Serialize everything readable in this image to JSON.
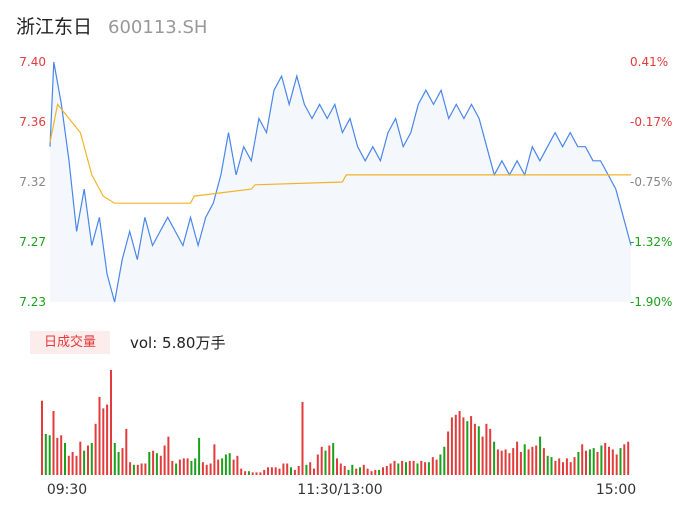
{
  "header": {
    "stock_name": "浙江东日",
    "stock_code": "600113.SH"
  },
  "volume_panel": {
    "tag_label": "日成交量",
    "readout": "vol: 5.80万手"
  },
  "colors": {
    "up": "#e33b3b",
    "down": "#1aa01a",
    "neutral": "#888888",
    "price_line": "#4a86e8",
    "avg_line": "#f0b429",
    "price_fill": "#f4f8fd"
  },
  "chart_data": [
    {
      "type": "line",
      "subtype": "intraday-timeshare",
      "x_ticks": [
        "09:30",
        "11:30/13:00",
        "15:00"
      ],
      "y_ticks_price": [
        "7.40",
        "7.36",
        "7.32",
        "7.27",
        "7.23"
      ],
      "y_ticks_pct": [
        "0.41%",
        "-0.17%",
        "-0.75%",
        "-1.32%",
        "-1.90%"
      ],
      "y_tick_colors": [
        "up",
        "up",
        "neutral",
        "down",
        "down"
      ],
      "ylim": [
        7.23,
        7.4
      ],
      "grid": false,
      "series": [
        {
          "role": "price",
          "points": [
            [
              0,
              7.34
            ],
            [
              1,
              7.4
            ],
            [
              3,
              7.37
            ],
            [
              5,
              7.33
            ],
            [
              7,
              7.28
            ],
            [
              9,
              7.31
            ],
            [
              11,
              7.27
            ],
            [
              13,
              7.29
            ],
            [
              15,
              7.25
            ],
            [
              17,
              7.23
            ],
            [
              19,
              7.26
            ],
            [
              21,
              7.28
            ],
            [
              23,
              7.26
            ],
            [
              25,
              7.29
            ],
            [
              27,
              7.27
            ],
            [
              29,
              7.28
            ],
            [
              31,
              7.29
            ],
            [
              33,
              7.28
            ],
            [
              35,
              7.27
            ],
            [
              37,
              7.29
            ],
            [
              39,
              7.27
            ],
            [
              41,
              7.29
            ],
            [
              43,
              7.3
            ],
            [
              45,
              7.32
            ],
            [
              47,
              7.35
            ],
            [
              49,
              7.32
            ],
            [
              51,
              7.34
            ],
            [
              53,
              7.33
            ],
            [
              55,
              7.36
            ],
            [
              57,
              7.35
            ],
            [
              59,
              7.38
            ],
            [
              61,
              7.39
            ],
            [
              63,
              7.37
            ],
            [
              65,
              7.39
            ],
            [
              67,
              7.37
            ],
            [
              69,
              7.36
            ],
            [
              71,
              7.37
            ],
            [
              73,
              7.36
            ],
            [
              75,
              7.37
            ],
            [
              77,
              7.35
            ],
            [
              79,
              7.36
            ],
            [
              81,
              7.34
            ],
            [
              83,
              7.33
            ],
            [
              85,
              7.34
            ],
            [
              87,
              7.33
            ],
            [
              89,
              7.35
            ],
            [
              91,
              7.36
            ],
            [
              93,
              7.34
            ],
            [
              95,
              7.35
            ],
            [
              97,
              7.37
            ],
            [
              99,
              7.38
            ],
            [
              101,
              7.37
            ],
            [
              103,
              7.38
            ],
            [
              105,
              7.36
            ],
            [
              107,
              7.37
            ],
            [
              109,
              7.36
            ],
            [
              111,
              7.37
            ],
            [
              113,
              7.36
            ],
            [
              115,
              7.34
            ],
            [
              117,
              7.32
            ],
            [
              119,
              7.33
            ],
            [
              121,
              7.32
            ],
            [
              123,
              7.33
            ],
            [
              125,
              7.32
            ],
            [
              127,
              7.34
            ],
            [
              129,
              7.33
            ],
            [
              131,
              7.34
            ],
            [
              133,
              7.35
            ],
            [
              135,
              7.34
            ],
            [
              137,
              7.35
            ],
            [
              139,
              7.34
            ],
            [
              141,
              7.34
            ],
            [
              143,
              7.33
            ],
            [
              145,
              7.33
            ],
            [
              147,
              7.32
            ],
            [
              149,
              7.31
            ],
            [
              151,
              7.29
            ],
            [
              152,
              7.28
            ],
            [
              153,
              7.27
            ]
          ]
        },
        {
          "role": "average",
          "points": [
            [
              0,
              7.343
            ],
            [
              2,
              7.37
            ],
            [
              5,
              7.36
            ],
            [
              8,
              7.35
            ],
            [
              11,
              7.32
            ],
            [
              14,
              7.305
            ],
            [
              17,
              7.3
            ],
            [
              24,
              7.3
            ],
            [
              37,
              7.3
            ],
            [
              38,
              7.305
            ],
            [
              53,
              7.31
            ],
            [
              54,
              7.313
            ],
            [
              77,
              7.315
            ],
            [
              78,
              7.32
            ],
            [
              153,
              7.32
            ]
          ]
        }
      ]
    },
    {
      "type": "bar",
      "subtype": "intraday-volume",
      "values": [
        58,
        32,
        31,
        50,
        29,
        31,
        25,
        15,
        18,
        15,
        26,
        19,
        23,
        25,
        40,
        61,
        52,
        55,
        82,
        25,
        18,
        21,
        36,
        10,
        8,
        8,
        9,
        9,
        18,
        19,
        17,
        15,
        23,
        30,
        11,
        9,
        12,
        13,
        13,
        11,
        13,
        29,
        10,
        8,
        9,
        24,
        12,
        13,
        16,
        17,
        12,
        15,
        5,
        3,
        3,
        2,
        2,
        2,
        4,
        6,
        6,
        6,
        5,
        9,
        9,
        6,
        4,
        7,
        57,
        8,
        10,
        5,
        16,
        22,
        19,
        23,
        25,
        13,
        9,
        7,
        4,
        8,
        5,
        6,
        8,
        5,
        3,
        4,
        4,
        6,
        7,
        9,
        11,
        9,
        11,
        10,
        11,
        11,
        9,
        11,
        10,
        10,
        14,
        12,
        16,
        22,
        34,
        45,
        47,
        50,
        45,
        42,
        46,
        40,
        38,
        30,
        40,
        36,
        26,
        20,
        19,
        20,
        17,
        21,
        26,
        18,
        24,
        20,
        22,
        23,
        30,
        21,
        15,
        14,
        11,
        13,
        10,
        13,
        10,
        14,
        18,
        24,
        19,
        20,
        21,
        18,
        23,
        25,
        22,
        20,
        16,
        21,
        24,
        26
      ],
      "colors": [
        "up",
        "down",
        "down",
        "up",
        "up",
        "up",
        "down",
        "up",
        "up",
        "up",
        "up",
        "down",
        "up",
        "down",
        "up",
        "up",
        "up",
        "up",
        "up",
        "down",
        "down",
        "up",
        "up",
        "up",
        "down",
        "up",
        "up",
        "up",
        "down",
        "up",
        "down",
        "up",
        "up",
        "up",
        "up",
        "down",
        "up",
        "up",
        "up",
        "down",
        "down",
        "down",
        "up",
        "up",
        "up",
        "up",
        "up",
        "down",
        "down",
        "down",
        "up",
        "up",
        "up",
        "up",
        "down",
        "up",
        "up",
        "up",
        "up",
        "up",
        "up",
        "up",
        "up",
        "up",
        "up",
        "down",
        "up",
        "up",
        "up",
        "down",
        "up",
        "up",
        "up",
        "up",
        "down",
        "up",
        "down",
        "up",
        "up",
        "up",
        "down",
        "down",
        "up",
        "down",
        "up",
        "up",
        "up",
        "up",
        "down",
        "up",
        "up",
        "up",
        "up",
        "down",
        "up",
        "down",
        "up",
        "up",
        "down",
        "up",
        "up",
        "down",
        "up",
        "up",
        "down",
        "down",
        "up",
        "up",
        "up",
        "up",
        "up",
        "down",
        "up",
        "up",
        "down",
        "up",
        "up",
        "up",
        "down",
        "up",
        "up",
        "up",
        "up",
        "up",
        "up",
        "up",
        "down",
        "up",
        "up",
        "up",
        "down",
        "up",
        "down",
        "down",
        "up",
        "up",
        "up",
        "up",
        "up",
        "up",
        "down",
        "up",
        "up",
        "down",
        "down",
        "up",
        "down",
        "up",
        "up",
        "up",
        "up",
        "down",
        "up",
        "up"
      ]
    }
  ]
}
